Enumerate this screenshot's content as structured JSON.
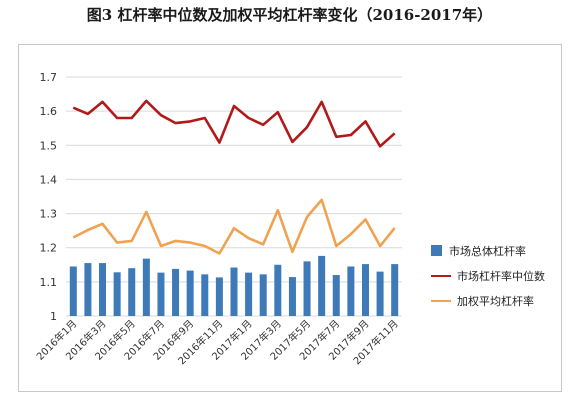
{
  "title": "图3 杠杆率中位数及加权平均杠杆率变化（2016-2017年）",
  "colors": {
    "bar": "#3e7ab8",
    "median": "#b11a1a",
    "weighted": "#f0a252",
    "grid": "#d9d9d9"
  },
  "chart_data": {
    "type": "bar+line",
    "title": "图3 杠杆率中位数及加权平均杠杆率变化（2016-2017年）",
    "ylim": [
      1,
      1.7
    ],
    "yticks": [
      "1",
      "1.1",
      "1.2",
      "1.3",
      "1.4",
      "1.5",
      "1.6",
      "1.7"
    ],
    "grid": true,
    "legend_position": "right",
    "categories": [
      "2016年1月",
      "2016年2月",
      "2016年3月",
      "2016年4月",
      "2016年5月",
      "2016年6月",
      "2016年7月",
      "2016年8月",
      "2016年9月",
      "2016年10月",
      "2016年11月",
      "2016年12月",
      "2017年1月",
      "2017年2月",
      "2017年3月",
      "2017年4月",
      "2017年5月",
      "2017年6月",
      "2017年7月",
      "2017年8月",
      "2017年9月",
      "2017年10月",
      "2017年11月"
    ],
    "xtick_labels": [
      "2016年1月",
      "2016年3月",
      "2016年5月",
      "2016年7月",
      "2016年9月",
      "2016年11月",
      "2017年1月",
      "2017年3月",
      "2017年5月",
      "2017年7月",
      "2017年9月",
      "2017年11月"
    ],
    "series": [
      {
        "name": "市场总体杠杆率",
        "kind": "bar",
        "values": [
          1.145,
          1.155,
          1.155,
          1.128,
          1.14,
          1.168,
          1.127,
          1.138,
          1.133,
          1.122,
          1.113,
          1.142,
          1.127,
          1.122,
          1.15,
          1.114,
          1.16,
          1.176,
          1.12,
          1.145,
          1.152,
          1.13,
          1.152
        ]
      },
      {
        "name": "市场杠杆率中位数",
        "kind": "line",
        "values": [
          1.61,
          1.592,
          1.627,
          1.58,
          1.58,
          1.63,
          1.588,
          1.565,
          1.57,
          1.58,
          1.508,
          1.615,
          1.58,
          1.56,
          1.597,
          1.51,
          1.553,
          1.627,
          1.525,
          1.53,
          1.57,
          1.497,
          1.535
        ]
      },
      {
        "name": "加权平均杠杆率",
        "kind": "line",
        "values": [
          1.23,
          1.252,
          1.27,
          1.215,
          1.22,
          1.305,
          1.205,
          1.22,
          1.215,
          1.205,
          1.183,
          1.257,
          1.228,
          1.21,
          1.31,
          1.188,
          1.29,
          1.34,
          1.205,
          1.24,
          1.283,
          1.205,
          1.258
        ]
      }
    ]
  }
}
